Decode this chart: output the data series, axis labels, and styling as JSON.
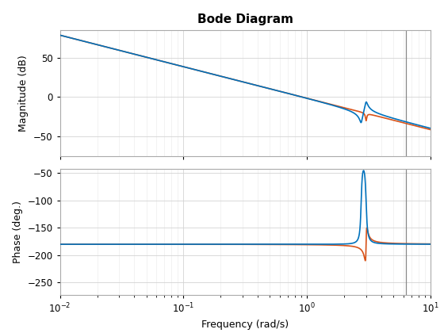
{
  "title": "Bode Diagram",
  "xlabel": "Frequency (rad/s)",
  "ylabel_mag": "Magnitude (dB)",
  "ylabel_phase": "Phase (deg.)",
  "freq_min": 0.01,
  "freq_max": 10,
  "mag_ylim": [
    -75,
    85
  ],
  "mag_yticks": [
    -50,
    0,
    50
  ],
  "phase_ylim": [
    -272,
    -42
  ],
  "phase_yticks": [
    -250,
    -200,
    -150,
    -100,
    -50
  ],
  "vline_x": 6.28,
  "color_blue": "#0072BD",
  "color_orange": "#D95319",
  "color_vline": "#888888",
  "background": "#FFFFFF",
  "title_fontsize": 11,
  "label_fontsize": 9,
  "tick_fontsize": 8.5,
  "linewidth": 1.2
}
